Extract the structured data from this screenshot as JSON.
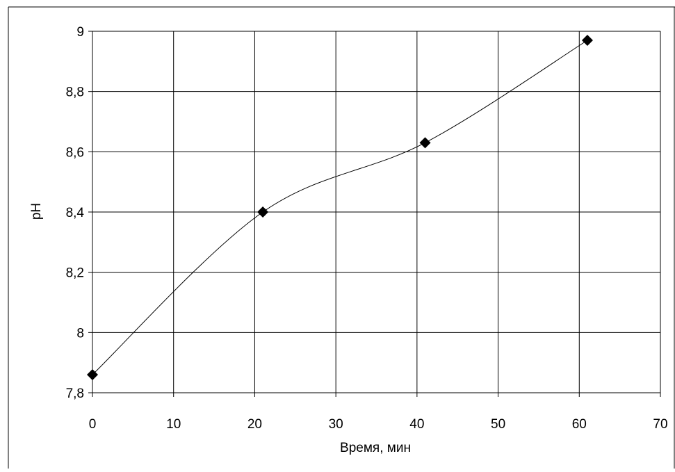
{
  "chart_data": {
    "type": "line",
    "title": "",
    "xlabel": "Время, мин",
    "ylabel": "pH",
    "xlim": [
      0,
      70
    ],
    "ylim": [
      7.8,
      9
    ],
    "xticks": [
      0,
      10,
      20,
      30,
      40,
      50,
      60,
      70
    ],
    "xtick_labels": [
      "0",
      "10",
      "20",
      "30",
      "40",
      "50",
      "60",
      "70"
    ],
    "yticks": [
      7.8,
      8,
      8.2,
      8.4,
      8.6,
      8.8,
      9
    ],
    "ytick_labels": [
      "7,8",
      "8",
      "8,2",
      "8,4",
      "8,6",
      "8,8",
      "9"
    ],
    "grid": true,
    "legend": "none",
    "smooth": true,
    "marker": "diamond",
    "line_color": "#000000",
    "marker_color": "#000000",
    "series": [
      {
        "x": [
          0,
          21,
          41,
          61
        ],
        "y": [
          7.86,
          8.4,
          8.63,
          8.97
        ]
      }
    ]
  }
}
